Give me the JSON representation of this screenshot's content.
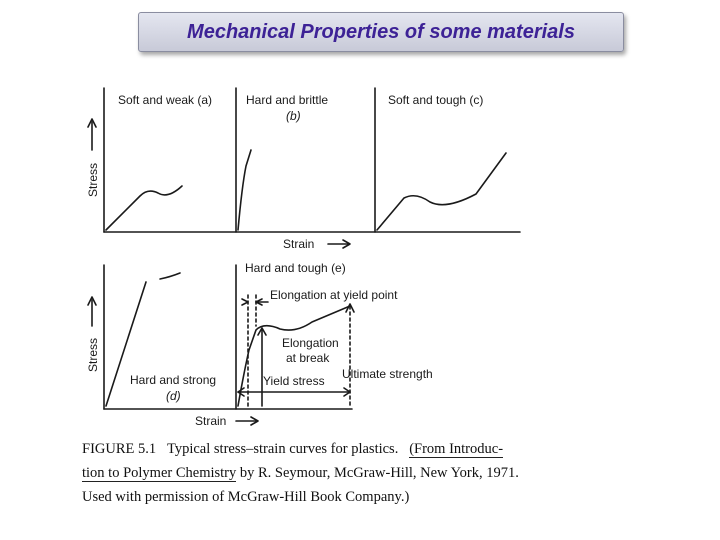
{
  "slide": {
    "title": "Mechanical Properties of some materials"
  },
  "figure": {
    "panels": {
      "a": "Soft and weak (a)",
      "b_line1": "Hard and brittle",
      "b_line2": "(b)",
      "c": "Soft and tough (c)",
      "d_line1": "Hard and strong",
      "d_line2": "(d)",
      "e": "Hard and tough (e)"
    },
    "axes": {
      "stress_label": "Stress",
      "strain_label": "Strain"
    },
    "annotations": {
      "elongation_yield": "Elongation at yield point",
      "elongation_break_line1": "Elongation",
      "elongation_break_line2": "at break",
      "yield_stress": "Yield stress",
      "ultimate_strength": "Ultimate strength"
    },
    "caption": {
      "line1_label": "FIGURE 5.1",
      "line1_text": "Typical stress–strain curves for plastics.",
      "line1_source": "(From Introduc-",
      "line2_ul": "tion to Polymer Chemistry",
      "line2_rest": "by R. Seymour, McGraw-Hill, New York, 1971.",
      "line3": "Used with permission of McGraw-Hill Book Company.)"
    }
  }
}
